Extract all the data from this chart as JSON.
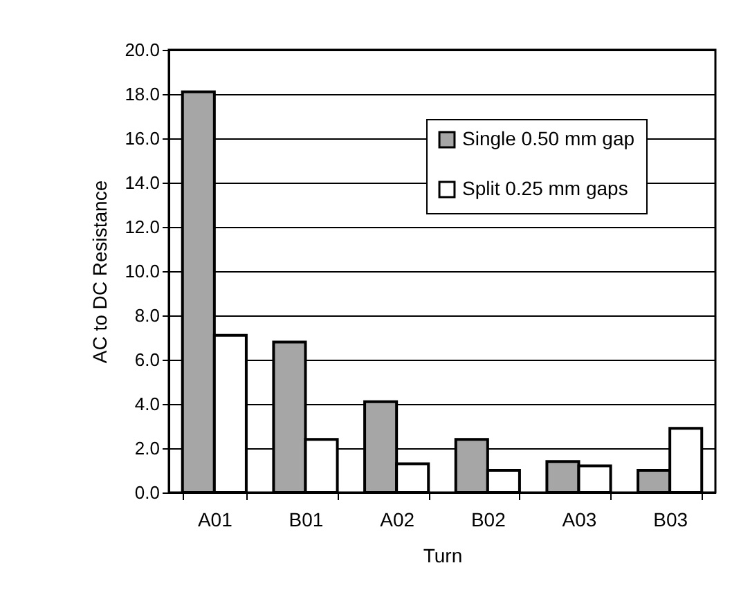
{
  "chart_data": {
    "type": "bar",
    "xlabel": "Turn",
    "ylabel": "AC to DC Resistance",
    "categories": [
      "A01",
      "B01",
      "A02",
      "B02",
      "A03",
      "B03"
    ],
    "series": [
      {
        "name": "Single 0.50 mm gap",
        "color": "#a6a6a6",
        "values": [
          18.1,
          6.8,
          4.1,
          2.4,
          1.4,
          1.0
        ]
      },
      {
        "name": "Split 0.25 mm gaps",
        "color": "#ffffff",
        "values": [
          7.1,
          2.4,
          1.3,
          1.0,
          1.2,
          2.9
        ]
      }
    ],
    "ylim": [
      0,
      20
    ],
    "yticks": [
      {
        "value": 0,
        "label": "0.0"
      },
      {
        "value": 2,
        "label": "2.0"
      },
      {
        "value": 4,
        "label": "4.0"
      },
      {
        "value": 6,
        "label": "6.0"
      },
      {
        "value": 8,
        "label": "8.0"
      },
      {
        "value": 10,
        "label": "10.0"
      },
      {
        "value": 12,
        "label": "12.0"
      },
      {
        "value": 14,
        "label": "14.0"
      },
      {
        "value": 16,
        "label": "16.0"
      },
      {
        "value": 18,
        "label": "18.0"
      },
      {
        "value": 20,
        "label": "20.0"
      }
    ],
    "grid": "y",
    "legend": "top right"
  }
}
